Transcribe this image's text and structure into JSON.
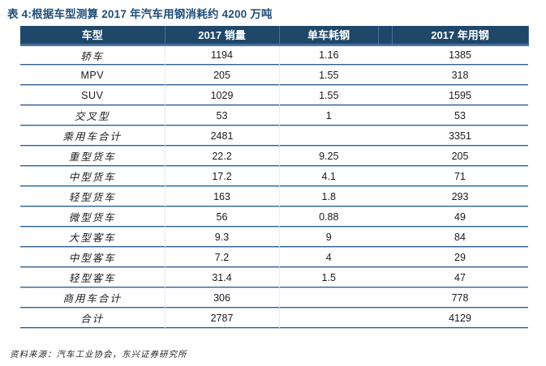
{
  "title": "表 4:根据车型测算 2017 年汽车用钢消耗约 4200 万吨",
  "table": {
    "columns": [
      "车型",
      "2017 销量",
      "单车耗钢",
      "2017 年用钢"
    ],
    "rows": [
      {
        "type": "轿车",
        "sales": "1194",
        "per_unit": "1.16",
        "usage": "1385"
      },
      {
        "type": "MPV",
        "sales": "205",
        "per_unit": "1.55",
        "usage": "318"
      },
      {
        "type": "SUV",
        "sales": "1029",
        "per_unit": "1.55",
        "usage": "1595"
      },
      {
        "type": "交叉型",
        "sales": "53",
        "per_unit": "1",
        "usage": "53"
      },
      {
        "type": "乘用车合计",
        "sales": "2481",
        "per_unit": "",
        "usage": "3351"
      },
      {
        "type": "重型货车",
        "sales": "22.2",
        "per_unit": "9.25",
        "usage": "205"
      },
      {
        "type": "中型货车",
        "sales": "17.2",
        "per_unit": "4.1",
        "usage": "71"
      },
      {
        "type": "轻型货车",
        "sales": "163",
        "per_unit": "1.8",
        "usage": "293"
      },
      {
        "type": "微型货车",
        "sales": "56",
        "per_unit": "0.88",
        "usage": "49"
      },
      {
        "type": "大型客车",
        "sales": "9.3",
        "per_unit": "9",
        "usage": "84"
      },
      {
        "type": "中型客车",
        "sales": "7.2",
        "per_unit": "4",
        "usage": "29"
      },
      {
        "type": "轻型客车",
        "sales": "31.4",
        "per_unit": "1.5",
        "usage": "47"
      },
      {
        "type": "商用车合计",
        "sales": "306",
        "per_unit": "",
        "usage": "778"
      },
      {
        "type": "合计",
        "sales": "2787",
        "per_unit": "",
        "usage": "4129"
      }
    ]
  },
  "source": "资料来源：汽车工业协会，东兴证券研究所",
  "colors": {
    "title_text": "#1F4E79",
    "header_bg": "#1F4769",
    "header_text": "#ffffff",
    "header_bottom_border": "#44739F",
    "row_line_dark": "#2B5C8C",
    "row_line_light": "#A9C7E4",
    "body_text": "#1a1a1a"
  }
}
